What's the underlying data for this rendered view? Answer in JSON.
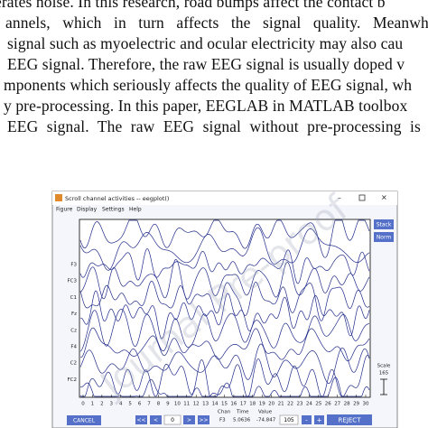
{
  "paragraph": {
    "lines": [
      "erates noise. In this research, road bumps affect the contact b",
      "annels, which in turn affects the signal quality. Meanwh",
      "signal such as myoelectric and ocular electricity may also cau",
      "EEG signal. Therefore, the raw EEG signal is usually doped v",
      "mponents which seriously affects the quality of EEG signal, wh",
      "y pre-processing. In this paper, EEGLAB in MATLAB toolbox",
      "EEG signal. The raw EEG signal without pre-processing is as"
    ]
  },
  "watermark": "Journal Pre-proof",
  "window": {
    "title": "Scroll channel activities -- eegplot()",
    "menu": [
      "Figure",
      "Display",
      "Settings",
      "Help"
    ],
    "stack": "Stack",
    "norm": "Norm",
    "scale_label": "Scale",
    "scale_value": "165",
    "channels": [
      "F3",
      "FC3",
      "C1",
      "Fz",
      "Cz",
      "F4",
      "C2",
      "FC2"
    ],
    "x_ticks": [
      0,
      1,
      2,
      3,
      4,
      5,
      6,
      7,
      8,
      9,
      10,
      11,
      12,
      13,
      14,
      15,
      16,
      17,
      18,
      19,
      20,
      21,
      22,
      23,
      24,
      25,
      26,
      27,
      28,
      29,
      30
    ],
    "cancel": "CANCEL",
    "nav": [
      "<<",
      "<",
      "0",
      ">",
      ">>"
    ],
    "readout_headers": [
      "Chan",
      "Time",
      "Value"
    ],
    "readout_values": [
      "F3",
      "5.0636",
      "-74.847"
    ],
    "spacing": "105",
    "minus": "-",
    "plus": "+",
    "reject": "REJECT"
  }
}
